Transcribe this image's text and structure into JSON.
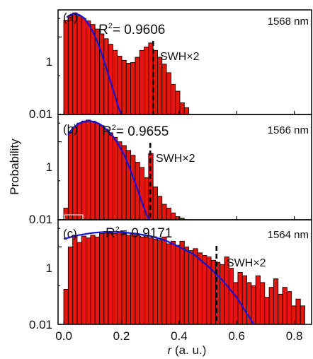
{
  "figure": {
    "ylabel": "Probability",
    "xlabel_var": "r",
    "xlabel_unit": " (a. u.)",
    "x_ticks": [
      "0.0",
      "0.2",
      "0.4",
      "0.6",
      "0.8"
    ],
    "y_ticks": [
      "1",
      "0.01"
    ],
    "colors": {
      "bars": "#e8140e",
      "fit": "#1414d8",
      "marker": "#000000"
    }
  },
  "chart_data": [
    {
      "type": "bar",
      "panel": "(a)",
      "wavelength": "1568 nm",
      "r2": "0.9606",
      "marker_label": "SWH×2",
      "marker_x": 0.31,
      "bin_width": 0.0155,
      "x": [
        0.0075,
        0.023,
        0.0385,
        0.054,
        0.0695,
        0.085,
        0.1005,
        0.116,
        0.1315,
        0.147,
        0.1625,
        0.178,
        0.1935,
        0.209,
        0.2245,
        0.24,
        0.2555,
        0.271,
        0.2865,
        0.302,
        0.3175,
        0.333,
        0.3485,
        0.364,
        0.3795,
        0.395,
        0.4105,
        0.426
      ],
      "values": [
        2.7,
        3.6,
        4.2,
        3.5,
        3.0,
        2.6,
        2.1,
        1.6,
        1.2,
        0.9,
        0.65,
        0.45,
        0.32,
        0.25,
        0.21,
        0.22,
        0.3,
        0.45,
        0.55,
        0.7,
        0.45,
        0.3,
        0.2,
        0.12,
        0.06,
        0.04,
        0.02,
        0.015
      ],
      "fit": {
        "x": [
          0.01,
          0.025,
          0.04,
          0.055,
          0.07,
          0.085,
          0.1,
          0.115,
          0.13,
          0.145,
          0.16,
          0.175,
          0.19,
          0.2
        ],
        "y": [
          3.2,
          3.8,
          4.0,
          3.7,
          3.1,
          2.2,
          1.4,
          0.8,
          0.4,
          0.18,
          0.08,
          0.035,
          0.015,
          0.01
        ]
      },
      "xlim": [
        -0.02,
        0.86
      ],
      "ylim": [
        0.01,
        5
      ],
      "yscale": "log"
    },
    {
      "type": "bar",
      "panel": "(b)",
      "wavelength": "1566 nm",
      "r2": "0.9655",
      "marker_label": "SWH×2",
      "marker_x": 0.3,
      "bin_width": 0.0155,
      "x": [
        0.0075,
        0.023,
        0.0385,
        0.054,
        0.0695,
        0.085,
        0.1005,
        0.116,
        0.1315,
        0.147,
        0.1625,
        0.178,
        0.1935,
        0.209,
        0.2245,
        0.24,
        0.2555,
        0.271,
        0.2865,
        0.302,
        0.3175,
        0.333,
        0.3485,
        0.364,
        0.3795,
        0.395,
        0.4105
      ],
      "values": [
        0.02,
        1.7,
        2.4,
        3.0,
        3.4,
        3.6,
        3.4,
        3.0,
        2.6,
        2.1,
        1.7,
        1.3,
        1.0,
        0.8,
        0.6,
        0.45,
        0.3,
        0.22,
        0.12,
        0.5,
        0.07,
        0.04,
        0.025,
        0.02,
        0.015,
        0.012,
        0.011
      ],
      "fit": {
        "x": [
          0.015,
          0.03,
          0.05,
          0.07,
          0.09,
          0.11,
          0.13,
          0.15,
          0.17,
          0.19,
          0.21,
          0.23,
          0.25,
          0.27,
          0.29,
          0.3
        ],
        "y": [
          1.5,
          2.2,
          2.9,
          3.3,
          3.4,
          3.2,
          2.7,
          2.0,
          1.4,
          0.85,
          0.45,
          0.2,
          0.08,
          0.03,
          0.012,
          0.01
        ]
      },
      "xlim": [
        -0.02,
        0.86
      ],
      "ylim": [
        0.01,
        5
      ],
      "yscale": "log"
    },
    {
      "type": "bar",
      "panel": "(c)",
      "wavelength": "1564 nm",
      "r2": "0.9171",
      "marker_label": "SWH×2",
      "marker_x": 0.53,
      "bin_width": 0.0155,
      "x": [
        0.0075,
        0.023,
        0.0385,
        0.054,
        0.0695,
        0.085,
        0.1005,
        0.116,
        0.1315,
        0.147,
        0.1625,
        0.178,
        0.1935,
        0.209,
        0.2245,
        0.24,
        0.2555,
        0.271,
        0.2865,
        0.302,
        0.3175,
        0.333,
        0.3485,
        0.364,
        0.3795,
        0.395,
        0.4105,
        0.426,
        0.4415,
        0.457,
        0.4725,
        0.488,
        0.5035,
        0.519,
        0.5345,
        0.55,
        0.5655,
        0.581,
        0.5965,
        0.612,
        0.6275,
        0.643,
        0.6585,
        0.674,
        0.6895,
        0.705,
        0.7205,
        0.736,
        0.7515,
        0.767,
        0.7825,
        0.798,
        0.8135,
        0.829
      ],
      "values": [
        0.08,
        1.0,
        2.0,
        1.3,
        1.9,
        1.7,
        2.0,
        1.8,
        2.2,
        2.5,
        2.4,
        2.2,
        2.4,
        2.2,
        2.0,
        2.2,
        2.0,
        1.8,
        1.8,
        1.7,
        1.6,
        1.5,
        1.8,
        1.2,
        1.4,
        1.1,
        1.4,
        1.0,
        0.8,
        0.9,
        0.7,
        0.6,
        0.55,
        0.45,
        0.4,
        0.35,
        0.55,
        0.28,
        0.12,
        0.22,
        0.18,
        0.12,
        0.1,
        0.18,
        0.12,
        0.05,
        0.09,
        0.15,
        0.06,
        0.09,
        0.07,
        0.03,
        0.045,
        0.03
      ],
      "fit": {
        "x": [
          0.0,
          0.05,
          0.1,
          0.15,
          0.2,
          0.25,
          0.3,
          0.35,
          0.4,
          0.45,
          0.5,
          0.55,
          0.6,
          0.63,
          0.66
        ],
        "y": [
          1.6,
          2.0,
          2.3,
          2.45,
          2.4,
          2.2,
          1.9,
          1.5,
          1.0,
          0.65,
          0.32,
          0.14,
          0.05,
          0.022,
          0.01
        ]
      },
      "xlim": [
        -0.02,
        0.86
      ],
      "ylim": [
        0.01,
        5
      ],
      "yscale": "log"
    }
  ]
}
